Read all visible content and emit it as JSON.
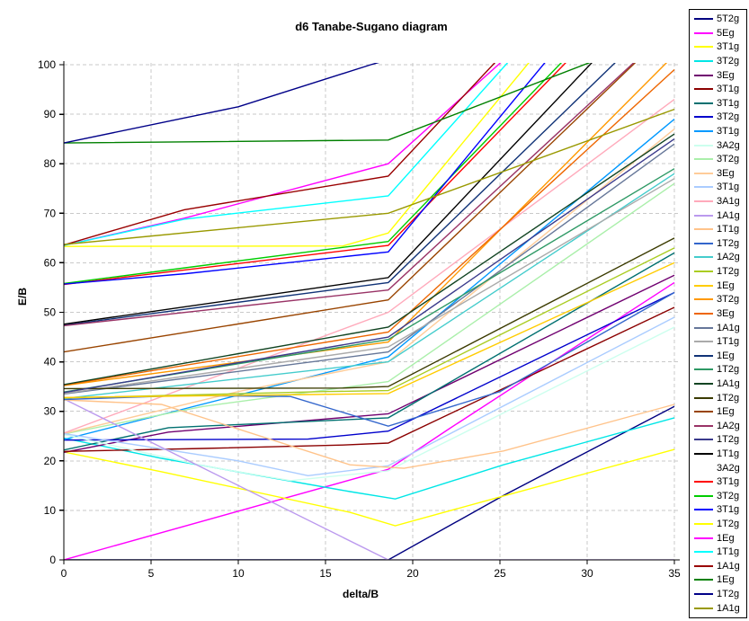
{
  "chart_data": {
    "type": "line",
    "title": "d6 Tanabe-Sugano diagram",
    "xlabel": "delta/B",
    "ylabel": "E/B",
    "xlim": [
      0,
      35
    ],
    "ylim": [
      0,
      100
    ],
    "x_ticks": [
      0,
      5,
      10,
      15,
      20,
      25,
      30,
      35
    ],
    "y_ticks": [
      0,
      10,
      20,
      30,
      40,
      50,
      60,
      70,
      80,
      90,
      100
    ],
    "grid": "dashed",
    "grid_color": "#c9c9c9",
    "axis_color": "#000000",
    "background": "#ffffff",
    "legend_position": "right",
    "spin_crossover_x": 18.6,
    "series": [
      {
        "label": "5T2g",
        "color": "#000080",
        "points": [
          [
            0,
            0
          ],
          [
            18.6,
            0
          ],
          [
            25.2,
            13
          ],
          [
            35,
            31
          ]
        ]
      },
      {
        "label": "5Eg",
        "color": "#ff00ff",
        "points": [
          [
            0,
            0
          ],
          [
            18.6,
            18.3
          ],
          [
            22.1,
            26.5
          ],
          [
            35,
            56
          ]
        ]
      },
      {
        "label": "3T1g",
        "color": "#ffff00",
        "points": [
          [
            0,
            21.8
          ],
          [
            5.6,
            17.8
          ],
          [
            16.4,
            9.6
          ],
          [
            19,
            6.9
          ],
          [
            25.2,
            12.9
          ],
          [
            35,
            22.3
          ]
        ]
      },
      {
        "label": "3T2g",
        "color": "#00e6e6",
        "points": [
          [
            0,
            24.6
          ],
          [
            5.6,
            20.5
          ],
          [
            16.4,
            13.8
          ],
          [
            19,
            12.3
          ],
          [
            25.2,
            19.2
          ],
          [
            35,
            28.7
          ]
        ]
      },
      {
        "label": "3Eg",
        "color": "#700070",
        "points": [
          [
            0,
            21.7
          ],
          [
            6,
            25.8
          ],
          [
            18.6,
            29.5
          ],
          [
            35,
            57.5
          ]
        ]
      },
      {
        "label": "3T1g",
        "color": "#8b0000",
        "points": [
          [
            0,
            21.9
          ],
          [
            8,
            22.5
          ],
          [
            16,
            23.2
          ],
          [
            18.6,
            23.6
          ],
          [
            35,
            51
          ]
        ]
      },
      {
        "label": "3T1g",
        "color": "#007070",
        "points": [
          [
            0,
            22.2
          ],
          [
            6,
            26.7
          ],
          [
            18.6,
            28.7
          ],
          [
            35,
            62
          ]
        ]
      },
      {
        "label": "3T2g",
        "color": "#0000cc",
        "points": [
          [
            0,
            24.2
          ],
          [
            14,
            24.4
          ],
          [
            18.6,
            26
          ],
          [
            35,
            54
          ]
        ]
      },
      {
        "label": "3T1g",
        "color": "#0099ff",
        "points": [
          [
            0,
            24.3
          ],
          [
            18.6,
            41
          ],
          [
            35,
            89
          ]
        ]
      },
      {
        "label": "3A2g",
        "color": "#ccffee",
        "points": [
          [
            0,
            25.3
          ],
          [
            8,
            19
          ],
          [
            13,
            16
          ],
          [
            18.6,
            18
          ],
          [
            35,
            47
          ]
        ]
      },
      {
        "label": "3T2g",
        "color": "#aaefaa",
        "points": [
          [
            0,
            25.4
          ],
          [
            8,
            31
          ],
          [
            18.6,
            36
          ],
          [
            35,
            76
          ]
        ]
      },
      {
        "label": "3Eg",
        "color": "#ffcc99",
        "points": [
          [
            0,
            25.5
          ],
          [
            10,
            34
          ],
          [
            18.6,
            40
          ],
          [
            35,
            87
          ]
        ]
      },
      {
        "label": "3T1g",
        "color": "#aaccff",
        "points": [
          [
            0,
            25.5
          ],
          [
            10,
            20
          ],
          [
            14,
            17
          ],
          [
            18.6,
            19
          ],
          [
            35,
            49
          ]
        ]
      },
      {
        "label": "3A1g",
        "color": "#ffaabb",
        "points": [
          [
            0,
            25.6
          ],
          [
            18.6,
            50
          ],
          [
            35,
            93
          ]
        ]
      },
      {
        "label": "1A1g",
        "color": "#bb99ee",
        "points": [
          [
            0,
            32.5
          ],
          [
            18.6,
            0
          ],
          [
            35,
            0
          ]
        ]
      },
      {
        "label": "1T1g",
        "color": "#ffc38a",
        "points": [
          [
            0,
            32.3
          ],
          [
            5.6,
            31.4
          ],
          [
            16.4,
            19.2
          ],
          [
            19.5,
            18.5
          ],
          [
            25.2,
            22
          ],
          [
            35,
            31.4
          ]
        ]
      },
      {
        "label": "1T2g",
        "color": "#3366cc",
        "points": [
          [
            0,
            32.4
          ],
          [
            7,
            33.2
          ],
          [
            13,
            33
          ],
          [
            18.6,
            27
          ],
          [
            25,
            34
          ],
          [
            35,
            54
          ]
        ]
      },
      {
        "label": "1A2g",
        "color": "#44cccc",
        "points": [
          [
            0,
            32.6
          ],
          [
            18.6,
            40
          ],
          [
            35,
            78
          ]
        ]
      },
      {
        "label": "1T2g",
        "color": "#aacc22",
        "points": [
          [
            0,
            32.7
          ],
          [
            15,
            34
          ],
          [
            18.6,
            34.2
          ],
          [
            35,
            63
          ]
        ]
      },
      {
        "label": "1Eg",
        "color": "#ffcc00",
        "points": [
          [
            0,
            32.8
          ],
          [
            14,
            33.4
          ],
          [
            18.6,
            33.6
          ],
          [
            35,
            60
          ]
        ]
      },
      {
        "label": "3T2g",
        "color": "#ff9900",
        "points": [
          [
            0,
            35.2
          ],
          [
            18.6,
            44
          ],
          [
            35,
            102
          ]
        ]
      },
      {
        "label": "3Eg",
        "color": "#ee6600",
        "points": [
          [
            0,
            35.3
          ],
          [
            18.6,
            46
          ],
          [
            35,
            99
          ]
        ]
      },
      {
        "label": "1A1g",
        "color": "#667799",
        "points": [
          [
            0,
            33.5
          ],
          [
            18.6,
            42
          ],
          [
            35,
            84
          ]
        ]
      },
      {
        "label": "1T1g",
        "color": "#aaaaaa",
        "points": [
          [
            0,
            33.6
          ],
          [
            18.6,
            43
          ],
          [
            35,
            77
          ]
        ]
      },
      {
        "label": "1Eg",
        "color": "#113377",
        "points": [
          [
            0,
            47.4
          ],
          [
            18.6,
            56
          ],
          [
            35,
            112
          ]
        ]
      },
      {
        "label": "1T2g",
        "color": "#2e9965",
        "points": [
          [
            0,
            33.9
          ],
          [
            18.6,
            44.5
          ],
          [
            35,
            79
          ]
        ]
      },
      {
        "label": "1A1g",
        "color": "#114422",
        "points": [
          [
            0,
            35.4
          ],
          [
            18.6,
            47
          ],
          [
            35,
            86
          ]
        ]
      },
      {
        "label": "1T2g",
        "color": "#3b3b00",
        "points": [
          [
            0,
            34.6
          ],
          [
            16,
            34.7
          ],
          [
            18.6,
            35
          ],
          [
            35,
            65
          ]
        ]
      },
      {
        "label": "1Eg",
        "color": "#994400",
        "points": [
          [
            0,
            42
          ],
          [
            18.6,
            52.5
          ],
          [
            35,
            108
          ]
        ]
      },
      {
        "label": "1A2g",
        "color": "#993366",
        "points": [
          [
            0,
            47.3
          ],
          [
            18.6,
            54.5
          ],
          [
            35,
            108
          ]
        ]
      },
      {
        "label": "1T2g",
        "color": "#3a3a8c",
        "points": [
          [
            0,
            33.8
          ],
          [
            18.6,
            45
          ],
          [
            35,
            85
          ]
        ]
      },
      {
        "label": "1T1g",
        "color": "#000000",
        "points": [
          [
            0,
            47.6
          ],
          [
            18.6,
            57
          ],
          [
            35,
            118
          ]
        ]
      },
      {
        "label": "3A2g",
        "color": "#ffffff",
        "points": [
          [
            0,
            56
          ],
          [
            18.6,
            66
          ],
          [
            35,
            120
          ]
        ]
      },
      {
        "label": "3T1g",
        "color": "#ff0000",
        "points": [
          [
            0,
            55.6
          ],
          [
            18.6,
            63.5
          ],
          [
            35,
            123
          ]
        ]
      },
      {
        "label": "3T2g",
        "color": "#00cc00",
        "points": [
          [
            0,
            55.8
          ],
          [
            18.6,
            64.3
          ],
          [
            35,
            124
          ]
        ]
      },
      {
        "label": "3T1g",
        "color": "#0000ff",
        "points": [
          [
            0,
            55.7
          ],
          [
            7,
            57.8
          ],
          [
            18.6,
            62.2
          ],
          [
            35,
            132
          ]
        ]
      },
      {
        "label": "1T2g",
        "color": "#ffff00",
        "points": [
          [
            0,
            63.3
          ],
          [
            16,
            63.4
          ],
          [
            18.6,
            66
          ],
          [
            35,
            136
          ]
        ]
      },
      {
        "label": "1Eg",
        "color": "#ff00ff",
        "points": [
          [
            0,
            63.5
          ],
          [
            6.9,
            69
          ],
          [
            18.6,
            80
          ],
          [
            35,
            132
          ]
        ]
      },
      {
        "label": "1T1g",
        "color": "#00ffff",
        "points": [
          [
            0,
            63.5
          ],
          [
            6.9,
            68.8
          ],
          [
            18.6,
            73.5
          ],
          [
            35,
            138
          ]
        ]
      },
      {
        "label": "1A1g",
        "color": "#990000",
        "points": [
          [
            0,
            63.6
          ],
          [
            6.9,
            70.7
          ],
          [
            18.6,
            77.5
          ],
          [
            35,
            139
          ]
        ]
      },
      {
        "label": "1Eg",
        "color": "#008000",
        "points": [
          [
            0,
            84.2
          ],
          [
            18.6,
            84.8
          ],
          [
            35,
            107
          ]
        ]
      },
      {
        "label": "1T2g",
        "color": "#000088",
        "points": [
          [
            0,
            84.2
          ],
          [
            10,
            91.5
          ],
          [
            17.6,
            100
          ],
          [
            18.6,
            101
          ]
        ]
      },
      {
        "label": "1A1g",
        "color": "#999900",
        "points": [
          [
            0,
            63.7
          ],
          [
            18.6,
            70
          ],
          [
            35,
            91
          ]
        ]
      }
    ]
  }
}
